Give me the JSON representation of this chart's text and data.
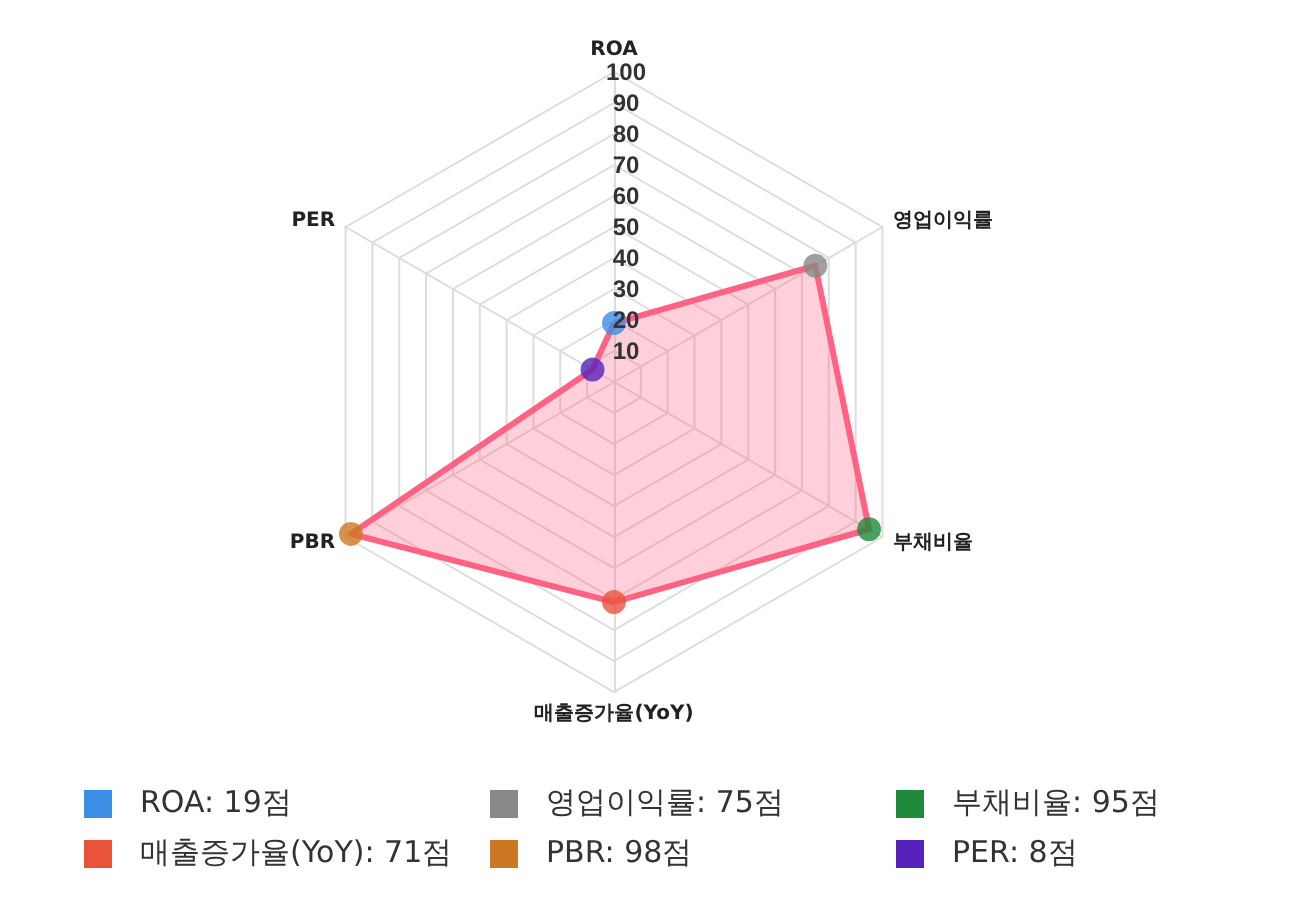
{
  "chart_data": {
    "type": "radar",
    "categories": [
      "ROA",
      "영업이익률",
      "부채비율",
      "매출증가율(YoY)",
      "PBR",
      "PER"
    ],
    "series": [
      {
        "color": "#ff6384",
        "values": [
          19,
          75,
          95,
          71,
          98,
          8
        ],
        "colors": [
          "#3a8ee6",
          "#888888",
          "#1e8a3a",
          "#e8533a",
          "#cc7722",
          "#5522bb"
        ]
      }
    ],
    "annotations": [
      "ROA: 19점",
      "영업이익률: 75점",
      "부채비율: 95점",
      "매출증가율(YoY): 71점",
      "PBR: 98점",
      "PER: 8점"
    ],
    "ylim": [
      0,
      100
    ],
    "yticks": [
      10,
      20,
      30,
      40,
      50,
      60,
      70,
      80,
      90,
      100
    ],
    "marker": "circle",
    "grid": true
  }
}
